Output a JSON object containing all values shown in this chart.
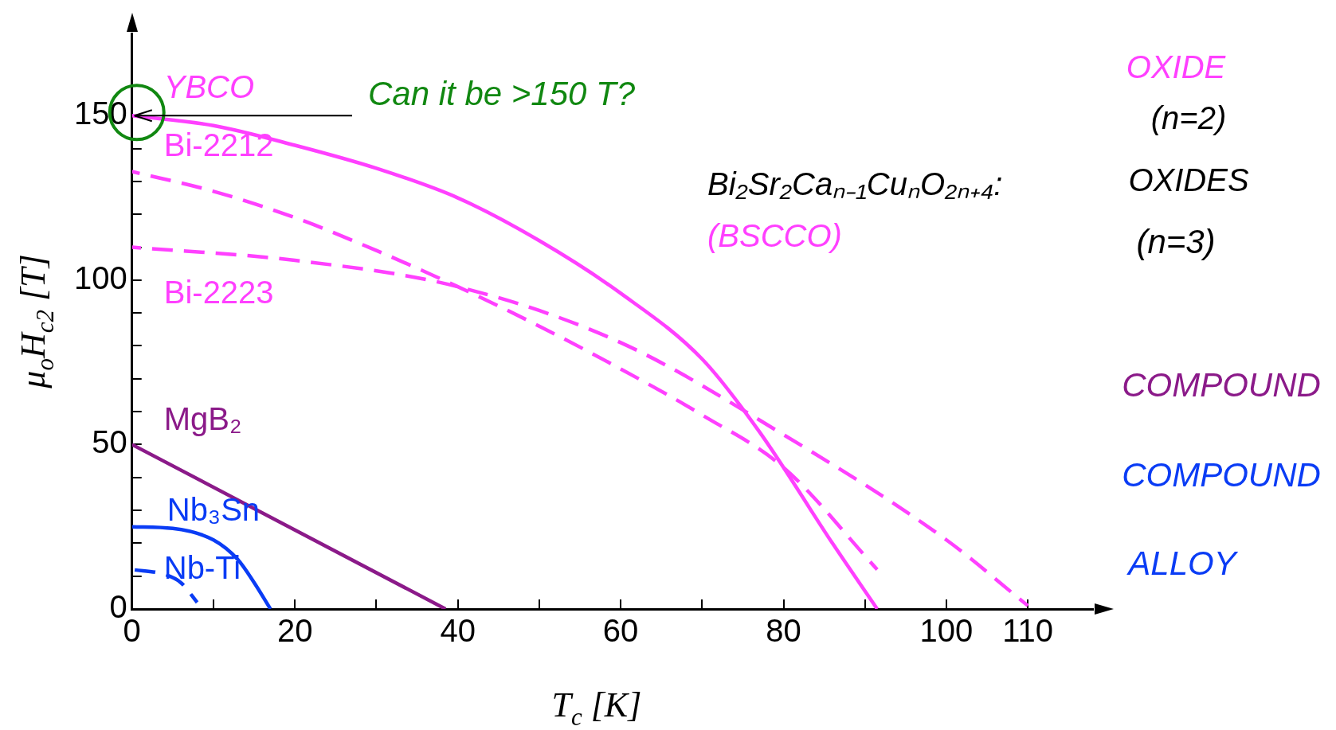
{
  "chart_data": {
    "type": "line",
    "xlabel": "T$_{c}$ [K]",
    "ylabel": "μ$_{o}$H$_{c2}$ [T]",
    "xlim": [
      0,
      118
    ],
    "ylim": [
      0,
      175
    ],
    "xticks": [
      0,
      {
        "value": 10,
        "label": null
      },
      20,
      {
        "value": 30,
        "label": null
      },
      40,
      {
        "value": 50,
        "label": null
      },
      60,
      {
        "value": 70,
        "label": null
      },
      80,
      {
        "value": 90,
        "label": null
      },
      100,
      110
    ],
    "yticks": [
      0,
      {
        "value": 10,
        "label": null
      },
      {
        "value": 20,
        "label": null
      },
      {
        "value": 30,
        "label": null
      },
      {
        "value": 40,
        "label": null
      },
      50,
      {
        "value": 60,
        "label": null
      },
      {
        "value": 70,
        "label": null
      },
      {
        "value": 80,
        "label": null
      },
      {
        "value": 90,
        "label": null
      },
      100,
      {
        "value": 110,
        "label": null
      },
      {
        "value": 120,
        "label": null
      },
      {
        "value": 130,
        "label": null
      },
      {
        "value": 140,
        "label": null
      },
      150
    ],
    "series": [
      {
        "name": "YBCO",
        "color": "#ff40ff",
        "line_style": "solid",
        "x": [
          0,
          10,
          20,
          30,
          40,
          50,
          60,
          70,
          77,
          86,
          91.5
        ],
        "values": [
          150,
          147,
          141,
          134,
          125,
          112,
          96,
          76,
          54,
          20,
          0
        ]
      },
      {
        "name": "Bi-2212",
        "color": "#ff40ff",
        "line_style": "dashed",
        "x": [
          0,
          10,
          20,
          30,
          40,
          50,
          60,
          70,
          80,
          91.5
        ],
        "values": [
          133,
          127,
          119,
          109,
          98,
          86,
          73,
          59,
          43,
          12
        ]
      },
      {
        "name": "Bi-2223",
        "color": "#ff40ff",
        "line_style": "dashed",
        "x": [
          0,
          20,
          40,
          60,
          80,
          100,
          110
        ],
        "values": [
          110,
          106,
          98,
          81,
          53,
          21,
          1
        ]
      },
      {
        "name": "MgB₂",
        "color": "#8b1a89",
        "line_style": "solid",
        "x": [
          0,
          38.5
        ],
        "values": [
          50,
          0
        ]
      },
      {
        "name": "Nb₃Sn",
        "color": "#0a3cf5",
        "line_style": "solid",
        "x": [
          0,
          5,
          10,
          13,
          15,
          17
        ],
        "values": [
          25,
          24.5,
          21,
          15,
          8,
          0
        ]
      },
      {
        "name": "Nb-Ti",
        "color": "#0a3cf5",
        "line_style": "dashed",
        "x": [
          0,
          4,
          6,
          8
        ],
        "values": [
          12,
          10.5,
          8,
          2
        ]
      }
    ],
    "annotations": [
      {
        "text": "Can it be >150 T?",
        "x": 0,
        "y": 150
      },
      "Bi₂Sr₂Caₙ₋₁CuₙO₂ₙ₊₄:",
      "(BSCCO)",
      "OXIDE",
      "(n=2)",
      "OXIDES",
      "(n=3)",
      "COMPOUND",
      "COMPOUND",
      "ALLOY"
    ]
  }
}
